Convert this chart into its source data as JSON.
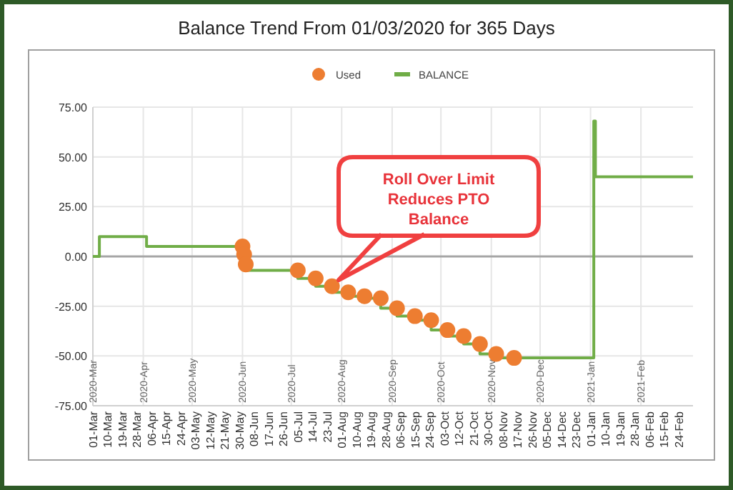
{
  "chart_data": {
    "type": "line",
    "title": "Balance Trend From 01/03/2020 for 365 Days",
    "xlim": [
      "2020-03-01",
      "2021-03-05"
    ],
    "xticks": [
      {
        "value": "2020-03-01",
        "label": "01-Mar"
      },
      {
        "value": "2020-03-10",
        "label": "10-Mar"
      },
      {
        "value": "2020-03-19",
        "label": "19-Mar"
      },
      {
        "value": "2020-03-28",
        "label": "28-Mar"
      },
      {
        "value": "2020-04-06",
        "label": "06-Apr"
      },
      {
        "value": "2020-04-15",
        "label": "15-Apr"
      },
      {
        "value": "2020-04-24",
        "label": "24-Apr"
      },
      {
        "value": "2020-05-03",
        "label": "03-May"
      },
      {
        "value": "2020-05-12",
        "label": "12-May"
      },
      {
        "value": "2020-05-21",
        "label": "21-May"
      },
      {
        "value": "2020-05-30",
        "label": "30-May"
      },
      {
        "value": "2020-06-08",
        "label": "08-Jun"
      },
      {
        "value": "2020-06-17",
        "label": "17-Jun"
      },
      {
        "value": "2020-06-26",
        "label": "26-Jun"
      },
      {
        "value": "2020-07-05",
        "label": "05-Jul"
      },
      {
        "value": "2020-07-14",
        "label": "14-Jul"
      },
      {
        "value": "2020-07-23",
        "label": "23-Jul"
      },
      {
        "value": "2020-08-01",
        "label": "01-Aug"
      },
      {
        "value": "2020-08-10",
        "label": "10-Aug"
      },
      {
        "value": "2020-08-19",
        "label": "19-Aug"
      },
      {
        "value": "2020-08-28",
        "label": "28-Aug"
      },
      {
        "value": "2020-09-06",
        "label": "06-Sep"
      },
      {
        "value": "2020-09-15",
        "label": "15-Sep"
      },
      {
        "value": "2020-09-24",
        "label": "24-Sep"
      },
      {
        "value": "2020-10-03",
        "label": "03-Oct"
      },
      {
        "value": "2020-10-12",
        "label": "12-Oct"
      },
      {
        "value": "2020-10-21",
        "label": "21-Oct"
      },
      {
        "value": "2020-10-30",
        "label": "30-Oct"
      },
      {
        "value": "2020-11-08",
        "label": "08-Nov"
      },
      {
        "value": "2020-11-17",
        "label": "17-Nov"
      },
      {
        "value": "2020-11-26",
        "label": "26-Nov"
      },
      {
        "value": "2020-12-05",
        "label": "05-Dec"
      },
      {
        "value": "2020-12-14",
        "label": "14-Dec"
      },
      {
        "value": "2020-12-23",
        "label": "23-Dec"
      },
      {
        "value": "2021-01-01",
        "label": "01-Jan"
      },
      {
        "value": "2021-01-10",
        "label": "10-Jan"
      },
      {
        "value": "2021-01-19",
        "label": "19-Jan"
      },
      {
        "value": "2021-01-28",
        "label": "28-Jan"
      },
      {
        "value": "2021-02-06",
        "label": "06-Feb"
      },
      {
        "value": "2021-02-15",
        "label": "15-Feb"
      },
      {
        "value": "2021-02-24",
        "label": "24-Feb"
      }
    ],
    "x2lim": [
      "2020-03-01",
      "2021-03-05"
    ],
    "x2ticks": [
      {
        "value": "2020-03-01",
        "label": "2020-Mar"
      },
      {
        "value": "2020-04-01",
        "label": "2020-Apr"
      },
      {
        "value": "2020-05-01",
        "label": "2020-May"
      },
      {
        "value": "2020-06-01",
        "label": "2020-Jun"
      },
      {
        "value": "2020-07-01",
        "label": "2020-Jul"
      },
      {
        "value": "2020-08-01",
        "label": "2020-Aug"
      },
      {
        "value": "2020-09-01",
        "label": "2020-Sep"
      },
      {
        "value": "2020-10-01",
        "label": "2020-Oct"
      },
      {
        "value": "2020-11-01",
        "label": "2020-Nov"
      },
      {
        "value": "2020-12-01",
        "label": "2020-Dec"
      },
      {
        "value": "2021-01-01",
        "label": "2021-Jan"
      },
      {
        "value": "2021-02-01",
        "label": "2021-Feb"
      }
    ],
    "ylim": [
      -75,
      75
    ],
    "yticks": [
      {
        "value": -75,
        "label": "-75.00"
      },
      {
        "value": -50,
        "label": "-50.00"
      },
      {
        "value": -25,
        "label": "-25.00"
      },
      {
        "value": 0,
        "label": "0.00"
      },
      {
        "value": 25,
        "label": "25.00"
      },
      {
        "value": 50,
        "label": "50.00"
      },
      {
        "value": 75,
        "label": "75.00"
      }
    ],
    "grid": true,
    "legend": "top",
    "ref_lines": [
      {
        "axis": "y",
        "value": 0,
        "color": "#a6a6a6"
      }
    ],
    "series": [
      {
        "name": "Used",
        "type": "scatter",
        "marker": "circle",
        "color": "#ed7d31",
        "x": [
          "2020-06-01",
          "2020-06-02",
          "2020-06-03",
          "2020-07-05",
          "2020-07-16",
          "2020-07-26",
          "2020-08-05",
          "2020-08-15",
          "2020-08-25",
          "2020-09-04",
          "2020-09-15",
          "2020-09-25",
          "2020-10-05",
          "2020-10-15",
          "2020-10-25",
          "2020-11-04",
          "2020-11-15"
        ],
        "values": [
          5,
          1,
          -4,
          -7,
          -11,
          -15,
          -18,
          -20,
          -21,
          -26,
          -30,
          -32,
          -37,
          -40,
          -44,
          -49,
          -51
        ]
      },
      {
        "name": "BALANCE",
        "type": "step",
        "color": "#70ad47",
        "x": [
          "2020-03-01",
          "2020-03-05",
          "2020-04-03",
          "2020-06-03",
          "2020-07-05",
          "2020-07-16",
          "2020-07-26",
          "2020-08-05",
          "2020-08-15",
          "2020-08-25",
          "2020-09-04",
          "2020-09-15",
          "2020-09-25",
          "2020-10-05",
          "2020-10-15",
          "2020-10-25",
          "2020-11-04",
          "2020-11-15",
          "2021-01-03",
          "2021-01-04",
          "2021-03-05"
        ],
        "values": [
          0,
          10,
          5,
          -7,
          -11,
          -15,
          -18,
          -20,
          -21,
          -26,
          -30,
          -32,
          -37,
          -40,
          -44,
          -49,
          -51,
          -51,
          68,
          40,
          40
        ]
      }
    ],
    "annotations": [
      "Roll Over Limit Reduces PTO Balance"
    ]
  }
}
